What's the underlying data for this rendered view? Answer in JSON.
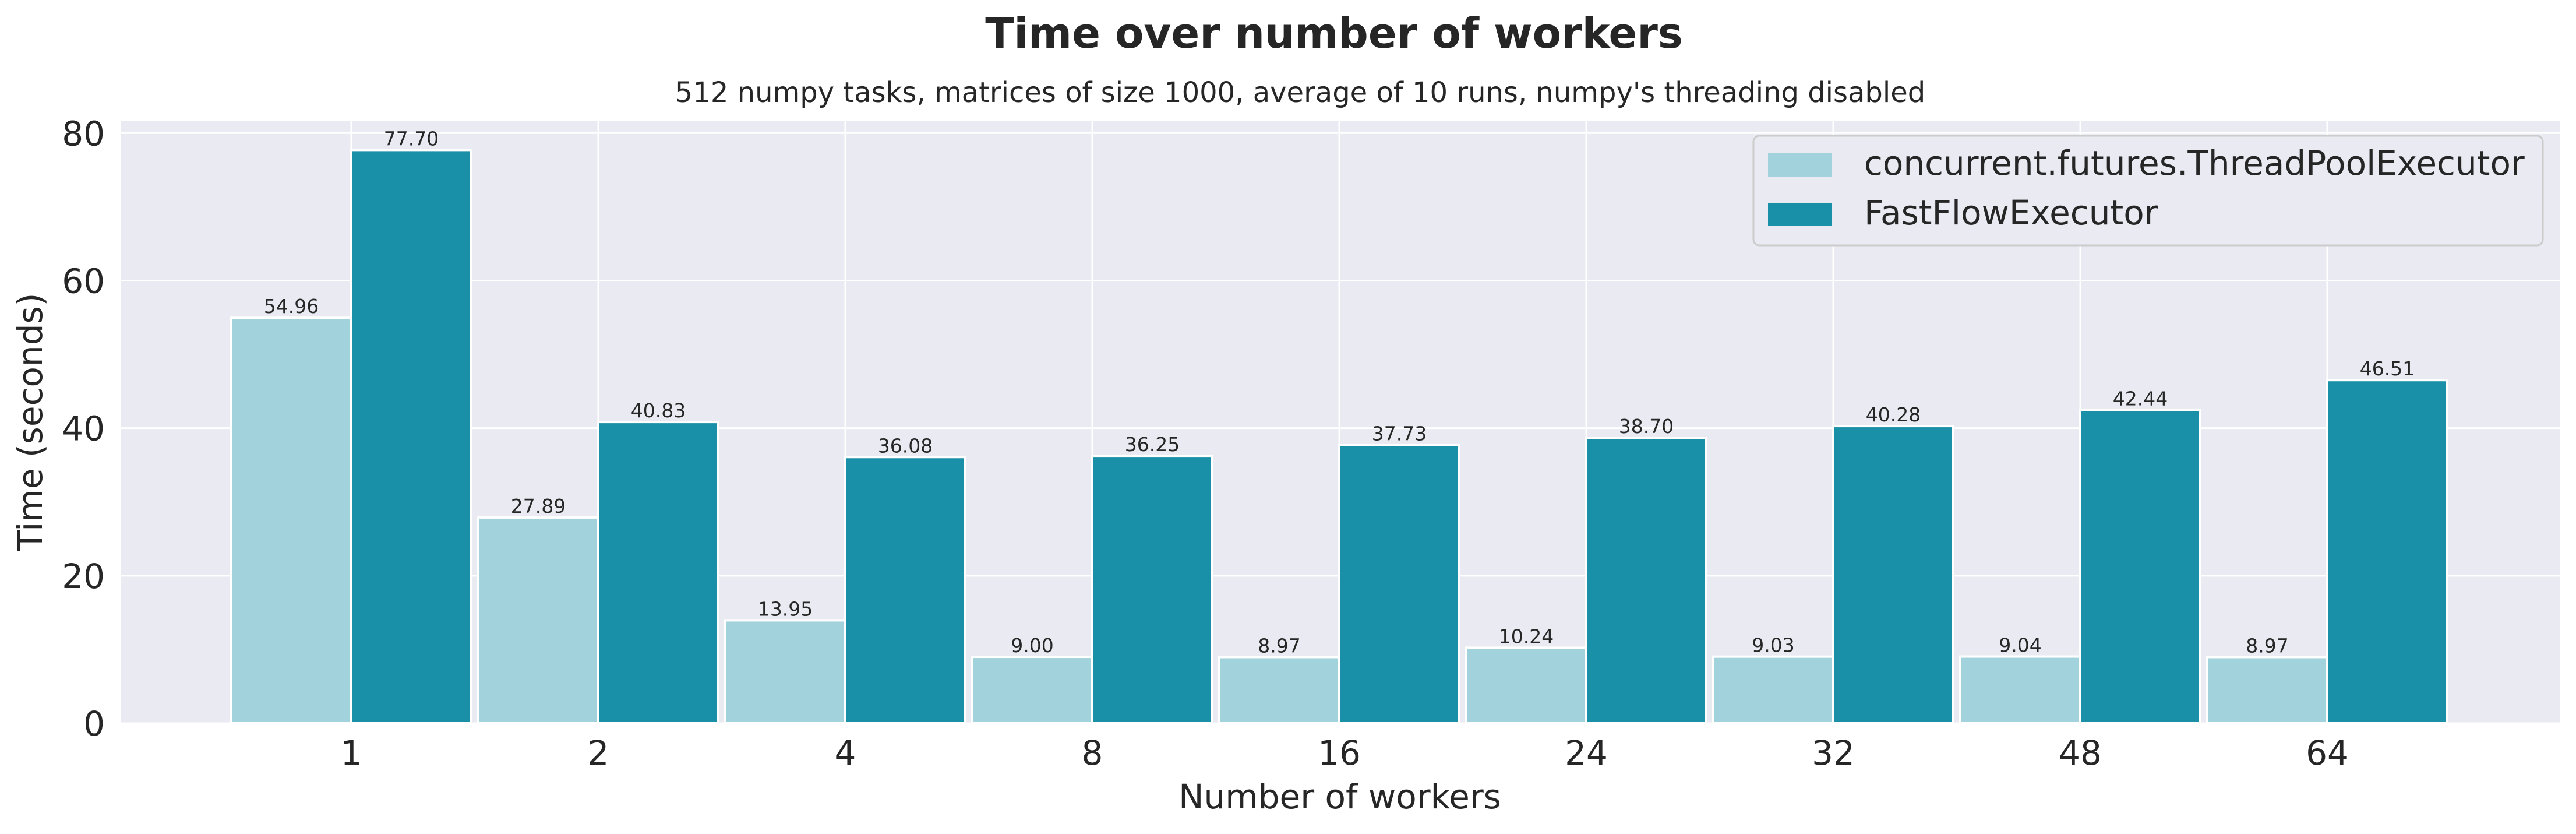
{
  "chart_data": {
    "type": "bar",
    "title": "Time over number of workers",
    "subtitle": "512 numpy tasks, matrices of size 1000, average of 10 runs, numpy's threading disabled",
    "xlabel": "Number of workers",
    "ylabel": "Time (seconds)",
    "categories": [
      "1",
      "2",
      "4",
      "8",
      "16",
      "24",
      "32",
      "48",
      "64"
    ],
    "series": [
      {
        "name": "concurrent.futures.ThreadPoolExecutor",
        "color": "#a2d2dc",
        "values": [
          54.96,
          27.89,
          13.95,
          9.0,
          8.97,
          10.24,
          9.03,
          9.04,
          8.97
        ],
        "labels": [
          "54.96",
          "27.89",
          "13.95",
          "9.00",
          "8.97",
          "10.24",
          "9.03",
          "9.04",
          "8.97"
        ]
      },
      {
        "name": "FastFlowExecutor",
        "color": "#1a8fa8",
        "values": [
          77.7,
          40.83,
          36.08,
          36.25,
          37.73,
          38.7,
          40.28,
          42.44,
          46.51
        ],
        "labels": [
          "77.70",
          "40.83",
          "36.08",
          "36.25",
          "37.73",
          "38.70",
          "40.28",
          "42.44",
          "46.51"
        ]
      }
    ],
    "yticks": [
      "0",
      "20",
      "40",
      "60",
      "80"
    ],
    "ylim": [
      0,
      81.6
    ],
    "grid": true,
    "legend_position": "top-right",
    "plot_background": "#eaeaf2",
    "grid_color": "#ffffff"
  }
}
